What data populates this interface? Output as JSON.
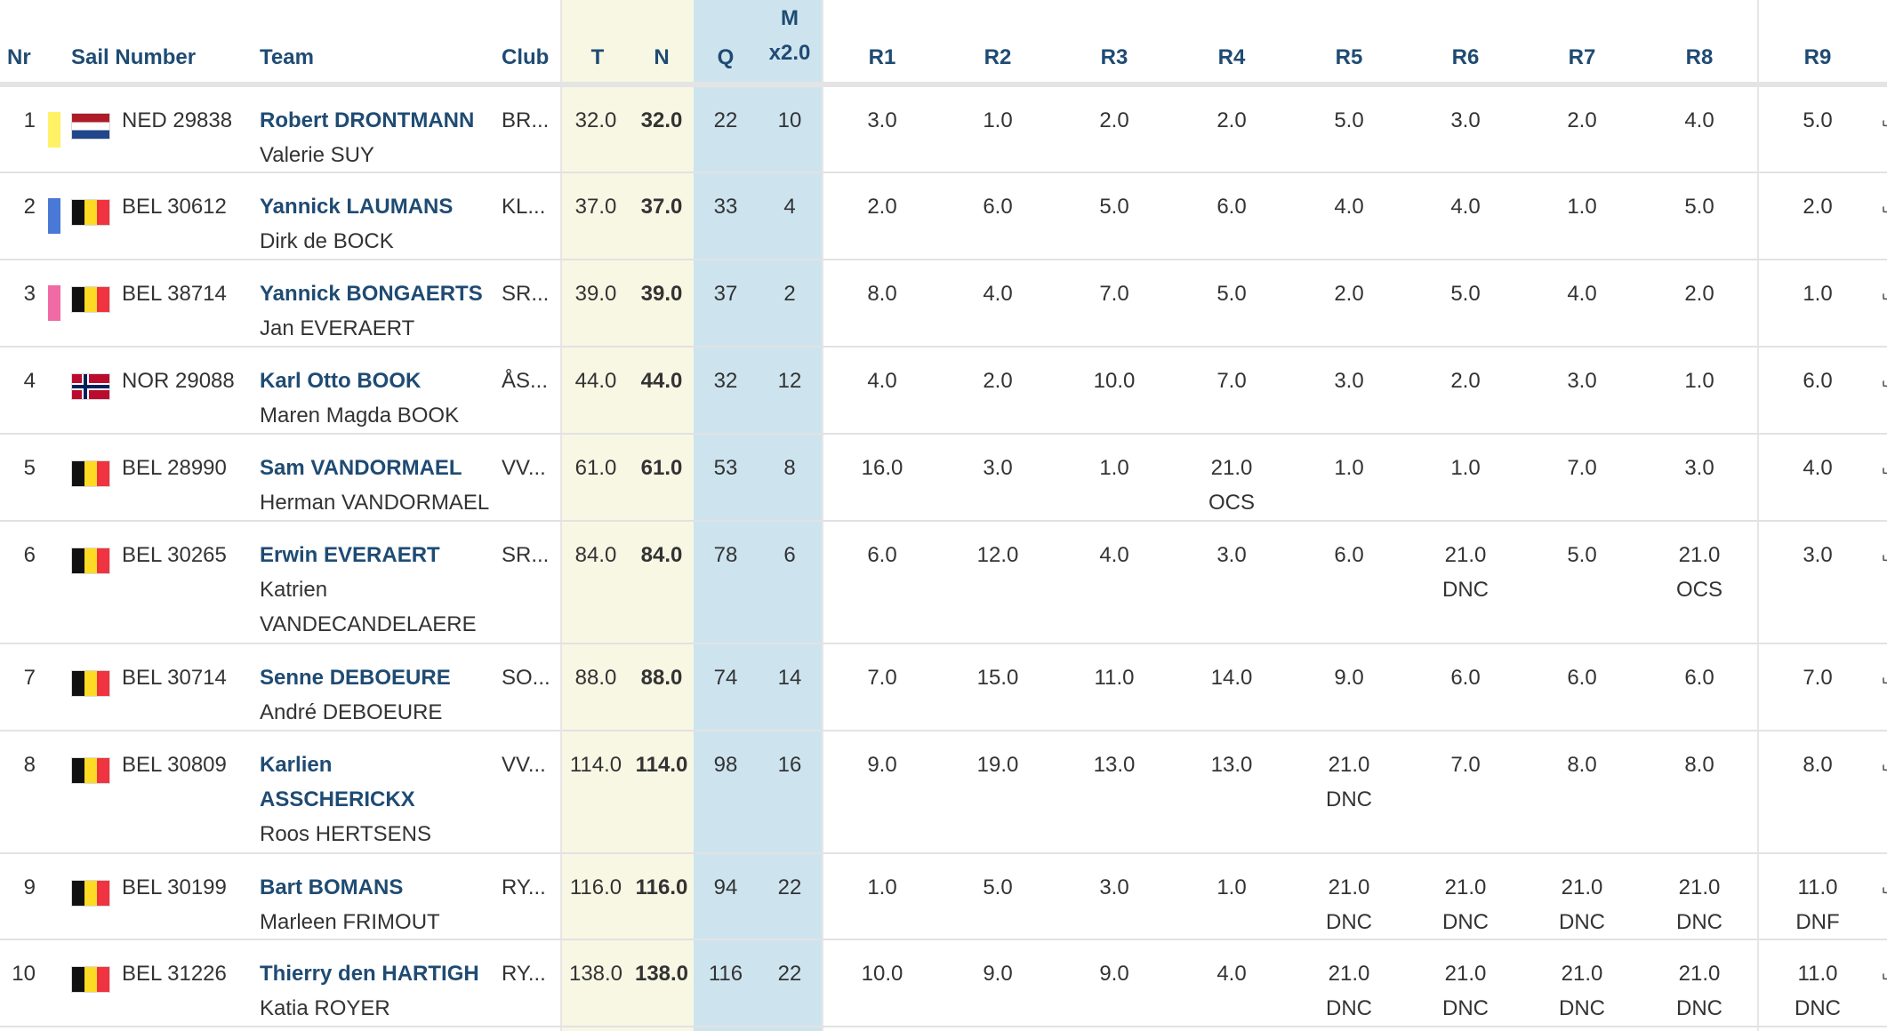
{
  "header": {
    "nr": "Nr",
    "sail_number": "Sail Number",
    "team": "Team",
    "club": "Club",
    "t": "T",
    "n": "N",
    "q": "Q",
    "m_top": "M",
    "m_bottom": "x2.0",
    "races": [
      "R1",
      "R2",
      "R3",
      "R4",
      "R5",
      "R6",
      "R7",
      "R8",
      "R9"
    ]
  },
  "colors": {
    "header_text": "#1f4b73",
    "total_net_band": "#f7f7e4",
    "q_m_band": "#cde4ef"
  },
  "rows": [
    {
      "nr": "1",
      "strip_color": "#fff266",
      "flag": "ned-flag-icon",
      "sail": "NED 29838",
      "helm": "Robert DRONTMANN",
      "crew": "Valerie SUY",
      "club": "BR...",
      "total": "32.0",
      "net": "32.0",
      "q": "22",
      "m": "10",
      "races": [
        {
          "score": "3.0",
          "code": ""
        },
        {
          "score": "1.0",
          "code": ""
        },
        {
          "score": "2.0",
          "code": ""
        },
        {
          "score": "2.0",
          "code": ""
        },
        {
          "score": "5.0",
          "code": ""
        },
        {
          "score": "3.0",
          "code": ""
        },
        {
          "score": "2.0",
          "code": ""
        },
        {
          "score": "4.0",
          "code": ""
        },
        {
          "score": "5.0",
          "code": ""
        }
      ]
    },
    {
      "nr": "2",
      "strip_color": "#4a78d6",
      "flag": "bel-flag-icon",
      "sail": "BEL 30612",
      "helm": "Yannick LAUMANS",
      "crew": "Dirk de BOCK",
      "club": "KL...",
      "total": "37.0",
      "net": "37.0",
      "q": "33",
      "m": "4",
      "races": [
        {
          "score": "2.0",
          "code": ""
        },
        {
          "score": "6.0",
          "code": ""
        },
        {
          "score": "5.0",
          "code": ""
        },
        {
          "score": "6.0",
          "code": ""
        },
        {
          "score": "4.0",
          "code": ""
        },
        {
          "score": "4.0",
          "code": ""
        },
        {
          "score": "1.0",
          "code": ""
        },
        {
          "score": "5.0",
          "code": ""
        },
        {
          "score": "2.0",
          "code": ""
        }
      ]
    },
    {
      "nr": "3",
      "strip_color": "#f06aa6",
      "flag": "bel-flag-icon",
      "sail": "BEL 38714",
      "helm": "Yannick BONGAERTS",
      "crew": "Jan EVERAERT",
      "club": "SR...",
      "total": "39.0",
      "net": "39.0",
      "q": "37",
      "m": "2",
      "races": [
        {
          "score": "8.0",
          "code": ""
        },
        {
          "score": "4.0",
          "code": ""
        },
        {
          "score": "7.0",
          "code": ""
        },
        {
          "score": "5.0",
          "code": ""
        },
        {
          "score": "2.0",
          "code": ""
        },
        {
          "score": "5.0",
          "code": ""
        },
        {
          "score": "4.0",
          "code": ""
        },
        {
          "score": "2.0",
          "code": ""
        },
        {
          "score": "1.0",
          "code": ""
        }
      ]
    },
    {
      "nr": "4",
      "strip_color": "",
      "flag": "nor-flag-icon",
      "sail": "NOR 29088",
      "helm": "Karl Otto BOOK",
      "crew": "Maren Magda BOOK",
      "club": "ÅS...",
      "total": "44.0",
      "net": "44.0",
      "q": "32",
      "m": "12",
      "races": [
        {
          "score": "4.0",
          "code": ""
        },
        {
          "score": "2.0",
          "code": ""
        },
        {
          "score": "10.0",
          "code": ""
        },
        {
          "score": "7.0",
          "code": ""
        },
        {
          "score": "3.0",
          "code": ""
        },
        {
          "score": "2.0",
          "code": ""
        },
        {
          "score": "3.0",
          "code": ""
        },
        {
          "score": "1.0",
          "code": ""
        },
        {
          "score": "6.0",
          "code": ""
        }
      ]
    },
    {
      "nr": "5",
      "strip_color": "",
      "flag": "bel-flag-icon",
      "sail": "BEL 28990",
      "helm": "Sam VANDORMAEL",
      "crew": "Herman VANDORMAEL",
      "club": "VV...",
      "total": "61.0",
      "net": "61.0",
      "q": "53",
      "m": "8",
      "races": [
        {
          "score": "16.0",
          "code": ""
        },
        {
          "score": "3.0",
          "code": ""
        },
        {
          "score": "1.0",
          "code": ""
        },
        {
          "score": "21.0",
          "code": "OCS"
        },
        {
          "score": "1.0",
          "code": ""
        },
        {
          "score": "1.0",
          "code": ""
        },
        {
          "score": "7.0",
          "code": ""
        },
        {
          "score": "3.0",
          "code": ""
        },
        {
          "score": "4.0",
          "code": ""
        }
      ]
    },
    {
      "nr": "6",
      "strip_color": "",
      "flag": "bel-flag-icon",
      "sail": "BEL 30265",
      "helm": "Erwin EVERAERT",
      "crew": "Katrien VANDECANDELAERE",
      "club": "SR...",
      "total": "84.0",
      "net": "84.0",
      "q": "78",
      "m": "6",
      "races": [
        {
          "score": "6.0",
          "code": ""
        },
        {
          "score": "12.0",
          "code": ""
        },
        {
          "score": "4.0",
          "code": ""
        },
        {
          "score": "3.0",
          "code": ""
        },
        {
          "score": "6.0",
          "code": ""
        },
        {
          "score": "21.0",
          "code": "DNC"
        },
        {
          "score": "5.0",
          "code": ""
        },
        {
          "score": "21.0",
          "code": "OCS"
        },
        {
          "score": "3.0",
          "code": ""
        }
      ]
    },
    {
      "nr": "7",
      "strip_color": "",
      "flag": "bel-flag-icon",
      "sail": "BEL 30714",
      "helm": "Senne DEBOEURE",
      "crew": "André DEBOEURE",
      "club": "SO...",
      "total": "88.0",
      "net": "88.0",
      "q": "74",
      "m": "14",
      "races": [
        {
          "score": "7.0",
          "code": ""
        },
        {
          "score": "15.0",
          "code": ""
        },
        {
          "score": "11.0",
          "code": ""
        },
        {
          "score": "14.0",
          "code": ""
        },
        {
          "score": "9.0",
          "code": ""
        },
        {
          "score": "6.0",
          "code": ""
        },
        {
          "score": "6.0",
          "code": ""
        },
        {
          "score": "6.0",
          "code": ""
        },
        {
          "score": "7.0",
          "code": ""
        }
      ]
    },
    {
      "nr": "8",
      "strip_color": "",
      "flag": "bel-flag-icon",
      "sail": "BEL 30809",
      "helm": "Karlien ASSCHERICKX",
      "crew": "Roos HERTSENS",
      "club": "VV...",
      "total": "114.0",
      "net": "114.0",
      "q": "98",
      "m": "16",
      "races": [
        {
          "score": "9.0",
          "code": ""
        },
        {
          "score": "19.0",
          "code": ""
        },
        {
          "score": "13.0",
          "code": ""
        },
        {
          "score": "13.0",
          "code": ""
        },
        {
          "score": "21.0",
          "code": "DNC"
        },
        {
          "score": "7.0",
          "code": ""
        },
        {
          "score": "8.0",
          "code": ""
        },
        {
          "score": "8.0",
          "code": ""
        },
        {
          "score": "8.0",
          "code": ""
        }
      ]
    },
    {
      "nr": "9",
      "strip_color": "",
      "flag": "bel-flag-icon",
      "sail": "BEL 30199",
      "helm": "Bart BOMANS",
      "crew": "Marleen FRIMOUT",
      "club": "RY...",
      "total": "116.0",
      "net": "116.0",
      "q": "94",
      "m": "22",
      "races": [
        {
          "score": "1.0",
          "code": ""
        },
        {
          "score": "5.0",
          "code": ""
        },
        {
          "score": "3.0",
          "code": ""
        },
        {
          "score": "1.0",
          "code": ""
        },
        {
          "score": "21.0",
          "code": "DNC"
        },
        {
          "score": "21.0",
          "code": "DNC"
        },
        {
          "score": "21.0",
          "code": "DNC"
        },
        {
          "score": "21.0",
          "code": "DNC"
        },
        {
          "score": "11.0",
          "code": "DNF"
        }
      ]
    },
    {
      "nr": "10",
      "strip_color": "",
      "flag": "bel-flag-icon",
      "sail": "BEL 31226",
      "helm": "Thierry den HARTIGH",
      "crew": "Katia ROYER",
      "club": "RY...",
      "total": "138.0",
      "net": "138.0",
      "q": "116",
      "m": "22",
      "races": [
        {
          "score": "10.0",
          "code": ""
        },
        {
          "score": "9.0",
          "code": ""
        },
        {
          "score": "9.0",
          "code": ""
        },
        {
          "score": "4.0",
          "code": ""
        },
        {
          "score": "21.0",
          "code": "DNC"
        },
        {
          "score": "21.0",
          "code": "DNC"
        },
        {
          "score": "21.0",
          "code": "DNC"
        },
        {
          "score": "21.0",
          "code": "DNC"
        },
        {
          "score": "11.0",
          "code": "DNC"
        }
      ]
    }
  ]
}
